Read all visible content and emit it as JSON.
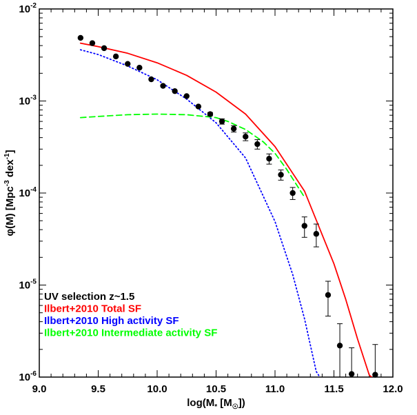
{
  "chart_data": {
    "type": "scatter",
    "xlabel": "log(M* [M☉])",
    "ylabel": "φ(M) [Mpc⁻³ dex⁻¹]",
    "xlim": [
      9.0,
      12.0
    ],
    "ylim": [
      1e-06,
      0.01
    ],
    "yscale": "log",
    "x_ticks": [
      "9.0",
      "9.5",
      "10.0",
      "10.5",
      "11.0",
      "11.5",
      "12.0"
    ],
    "y_ticks": [
      {
        "base": "10",
        "exp": "-2"
      },
      {
        "base": "10",
        "exp": "-3"
      },
      {
        "base": "10",
        "exp": "-4"
      },
      {
        "base": "10",
        "exp": "-5"
      },
      {
        "base": "10",
        "exp": "-6"
      }
    ],
    "legend_position": "bottom-left",
    "legend": [
      {
        "text": "UV selection z~1.5",
        "color": "#000000"
      },
      {
        "text": "Ilbert+2010 Total SF",
        "color": "#ff0000"
      },
      {
        "text": "Ilbert+2010 High activity SF",
        "color": "#0000ff"
      },
      {
        "text": "Ilbert+2010 Intermediate activity SF",
        "color": "#00ff00"
      }
    ],
    "points": {
      "name": "UV selection z~1.5",
      "color": "#000000",
      "x": [
        9.35,
        9.45,
        9.55,
        9.65,
        9.75,
        9.85,
        9.95,
        10.05,
        10.15,
        10.25,
        10.35,
        10.45,
        10.55,
        10.65,
        10.75,
        10.85,
        10.95,
        11.05,
        11.15,
        11.25,
        11.35,
        11.45,
        11.55,
        11.65,
        11.85
      ],
      "y": [
        0.00485,
        0.00425,
        0.00375,
        0.00305,
        0.00253,
        0.0023,
        0.00172,
        0.00146,
        0.00128,
        0.00113,
        0.00087,
        0.00072,
        0.0006,
        0.0005,
        0.00041,
        0.00034,
        0.000236,
        0.000158,
        0.0001,
        4.4e-05,
        3.6e-05,
        7.8e-06,
        2.2e-06,
        1.08e-06,
        1.06e-06
      ],
      "y_err": [
        0,
        0,
        0,
        0,
        0,
        0,
        0,
        0,
        0,
        0,
        0,
        3e-05,
        4e-05,
        4e-05,
        4e-05,
        4e-05,
        3e-05,
        2e-05,
        1.5e-05,
        1.1e-05,
        1e-05,
        3.2e-06,
        1.6e-06,
        1e-06,
        1.2e-06
      ]
    },
    "series": [
      {
        "name": "Ilbert+2010 Total SF",
        "color": "#ff0000",
        "style": "solid",
        "x": [
          9.35,
          9.5,
          9.75,
          10.0,
          10.25,
          10.5,
          10.75,
          11.0,
          11.25,
          11.5,
          11.6,
          11.7,
          11.8,
          11.82
        ],
        "y": [
          0.00425,
          0.0039,
          0.0033,
          0.0026,
          0.0019,
          0.00125,
          0.00072,
          0.00032,
          0.000105,
          1.7e-05,
          7e-06,
          2.6e-06,
          1.05e-06,
          1e-06
        ]
      },
      {
        "name": "Ilbert+2010 High activity SF",
        "color": "#0000ff",
        "style": "dotted",
        "x": [
          9.35,
          9.5,
          9.75,
          10.0,
          10.25,
          10.5,
          10.75,
          11.0,
          11.15,
          11.25,
          11.35,
          11.38
        ],
        "y": [
          0.0036,
          0.0032,
          0.0024,
          0.0017,
          0.00105,
          0.00058,
          0.00024,
          4.9e-05,
          1.3e-05,
          4.3e-06,
          1.15e-06,
          1e-06
        ]
      },
      {
        "name": "Ilbert+2010 Intermediate activity SF",
        "color": "#00ff00",
        "style": "dashed",
        "x": [
          9.35,
          9.5,
          9.75,
          10.0,
          10.25,
          10.5,
          10.6,
          10.75,
          10.9,
          11.0,
          11.1,
          11.25
        ],
        "y": [
          0.00066,
          0.00068,
          0.00071,
          0.00072,
          0.00071,
          0.00066,
          0.0006,
          0.00049,
          0.00036,
          0.00027,
          0.00018,
          9e-05
        ]
      }
    ]
  }
}
